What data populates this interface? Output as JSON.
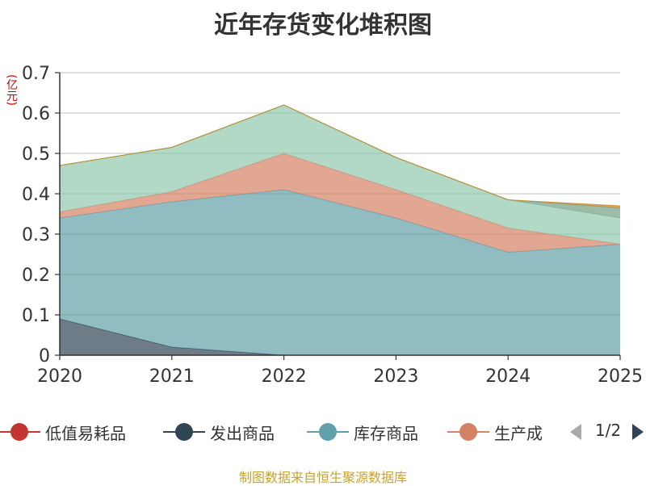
{
  "title": "近年存货变化堆积图",
  "unit": "(亿元)",
  "source": "制图数据来自恒生聚源数据库",
  "pager": {
    "text": "1/2"
  },
  "legend": [
    {
      "label": "低值易耗品",
      "color": "#c23531"
    },
    {
      "label": "发出商品",
      "color": "#2f4554"
    },
    {
      "label": "库存商品",
      "color": "#61a0a8"
    },
    {
      "label": "生产成",
      "color": "#d48265"
    }
  ],
  "chart_data": {
    "type": "area",
    "stacked": true,
    "title": "近年存货变化堆积图",
    "ylabel": "(亿元)",
    "x": [
      "2020",
      "2021",
      "2022",
      "2023",
      "2024",
      "2025"
    ],
    "ylim": [
      0,
      0.7
    ],
    "yticks": [
      "0",
      "0.1",
      "0.2",
      "0.3",
      "0.4",
      "0.5",
      "0.6",
      "0.7"
    ],
    "grid": true,
    "series": [
      {
        "name": "低值易耗品",
        "color": "#c23531",
        "values": [
          0,
          0,
          0,
          0,
          0,
          0
        ]
      },
      {
        "name": "发出商品",
        "color": "#2f4554",
        "values": [
          0.09,
          0.02,
          0,
          0,
          0,
          0
        ]
      },
      {
        "name": "库存商品",
        "color": "#61a0a8",
        "values": [
          0.25,
          0.36,
          0.41,
          0.34,
          0.255,
          0.275
        ]
      },
      {
        "color": "#d48265",
        "values": [
          0.015,
          0.025,
          0.09,
          0.07,
          0.06,
          0
        ]
      },
      {
        "color": "#91c7ae",
        "values": [
          0.115,
          0.11,
          0.12,
          0.08,
          0.07,
          0.065
        ]
      },
      {
        "color": "#749f83",
        "values": [
          0,
          0,
          0,
          0,
          0,
          0.025
        ]
      },
      {
        "color": "#ca8622",
        "values": [
          0,
          0,
          0,
          0,
          0,
          0.005
        ]
      }
    ]
  }
}
